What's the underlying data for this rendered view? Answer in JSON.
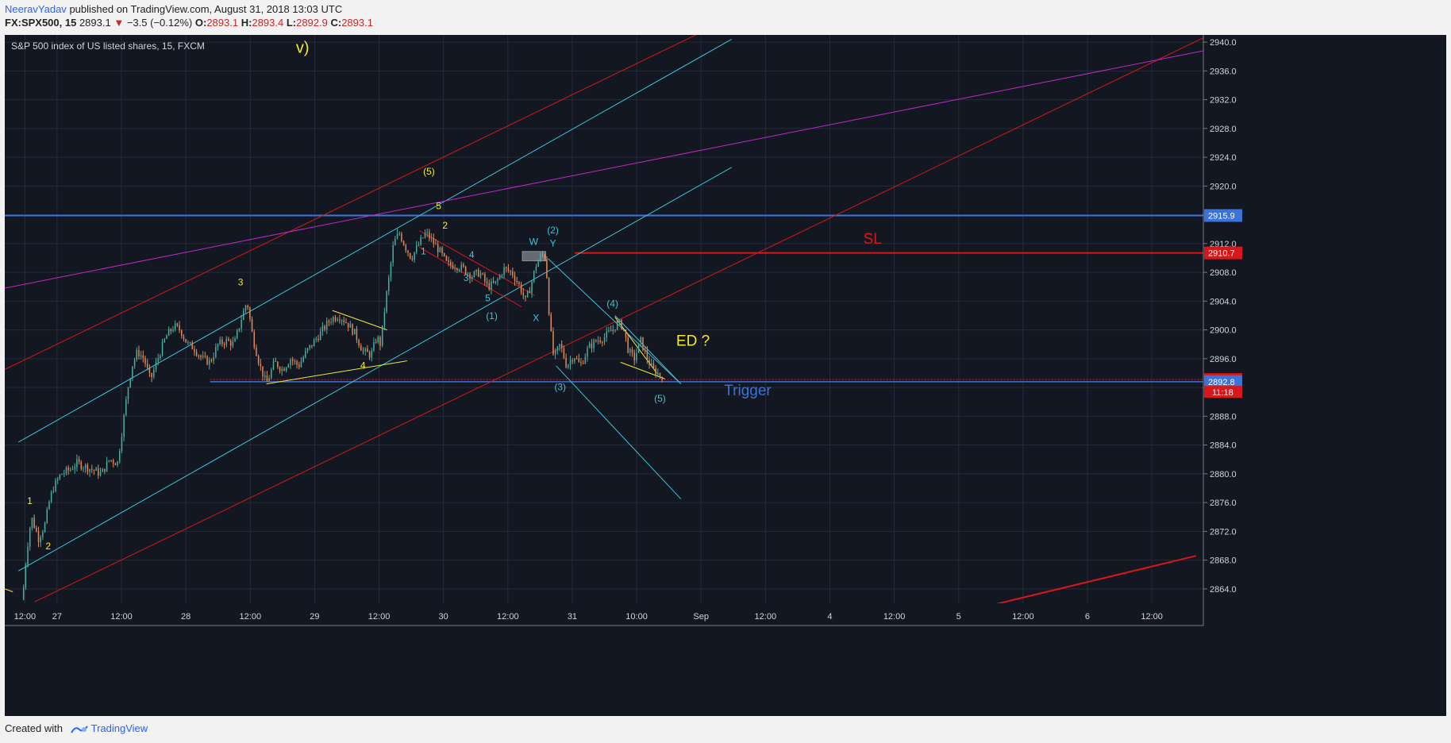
{
  "header": {
    "author": "NeeravYadav",
    "published": "published on TradingView.com, August 31, 2018 13:03 UTC",
    "symbol": "FX:SPX500, 15",
    "last": "2893.1",
    "change": "−3.5 (−0.12%)",
    "o_label": "O:",
    "o": "2893.1",
    "h_label": "H:",
    "h": "2893.4",
    "l_label": "L:",
    "l": "2892.9",
    "c_label": "C:",
    "c": "2893.1"
  },
  "footer": {
    "created_with": "Created with",
    "brand": "TradingView"
  },
  "colors": {
    "background": "#131722",
    "grid": "#262b3a",
    "up": "#4cae9f",
    "down": "#e08b58",
    "red_line": "#d8171a",
    "cyan_line": "#3bc6d6",
    "magenta_line": "#c028c8",
    "blue_level": "#3a73d9",
    "yellow": "#f2ea30"
  },
  "chart_data": {
    "type": "candlestick",
    "title": "S&P 500 index of US listed shares, 15, FXCM",
    "ylim": [
      2862,
      2941
    ],
    "xlim": [
      -6.5,
      142.4
    ],
    "y_ticks": [
      2864,
      2868,
      2872,
      2876,
      2880,
      2884,
      2888,
      2892,
      2896,
      2900,
      2904,
      2908,
      2912,
      2916,
      2920,
      2924,
      2928,
      2932,
      2936,
      2940
    ],
    "x_ticks": [
      {
        "x": -4,
        "label": "12:00"
      },
      {
        "x": 0,
        "label": "27"
      },
      {
        "x": 8,
        "label": "12:00"
      },
      {
        "x": 16,
        "label": "28"
      },
      {
        "x": 24,
        "label": "12:00"
      },
      {
        "x": 32,
        "label": "29"
      },
      {
        "x": 40,
        "label": "12:00"
      },
      {
        "x": 48,
        "label": "30"
      },
      {
        "x": 56,
        "label": "12:00"
      },
      {
        "x": 64,
        "label": "31"
      },
      {
        "x": 72,
        "label": "10:00"
      },
      {
        "x": 80,
        "label": "Sep"
      },
      {
        "x": 88,
        "label": "12:00"
      },
      {
        "x": 96,
        "label": "4"
      },
      {
        "x": 104,
        "label": "12:00"
      },
      {
        "x": 112,
        "label": "5"
      },
      {
        "x": 120,
        "label": "12:00"
      },
      {
        "x": 128,
        "label": "6"
      },
      {
        "x": 136,
        "label": "12:00"
      }
    ],
    "price_path": [
      [
        -4.3,
        2862.5
      ],
      [
        -3.8,
        2869
      ],
      [
        -3.2,
        2874
      ],
      [
        -2.3,
        2871
      ],
      [
        -1.5,
        2873
      ],
      [
        -1,
        2876
      ],
      [
        -0.5,
        2878
      ],
      [
        0.5,
        2880
      ],
      [
        1.5,
        2880.5
      ],
      [
        2.5,
        2881.5
      ],
      [
        3.5,
        2881
      ],
      [
        4.5,
        2880.5
      ],
      [
        5.5,
        2880
      ],
      [
        6.5,
        2882
      ],
      [
        7.5,
        2881.5
      ],
      [
        8.2,
        2887
      ],
      [
        8.8,
        2892
      ],
      [
        9.3,
        2895
      ],
      [
        10,
        2897
      ],
      [
        10.8,
        2896
      ],
      [
        11.6,
        2893
      ],
      [
        12.5,
        2896
      ],
      [
        13.5,
        2899
      ],
      [
        14.5,
        2900.5
      ],
      [
        15.3,
        2900
      ],
      [
        16.2,
        2898
      ],
      [
        17,
        2897.5
      ],
      [
        18,
        2896
      ],
      [
        19,
        2895.5
      ],
      [
        20,
        2898
      ],
      [
        21,
        2898.5
      ],
      [
        22,
        2898
      ],
      [
        23,
        2902
      ],
      [
        23.6,
        2904
      ],
      [
        24.3,
        2899
      ],
      [
        25.2,
        2895
      ],
      [
        26,
        2892.5
      ],
      [
        27,
        2895.5
      ],
      [
        28,
        2894.5
      ],
      [
        29,
        2896
      ],
      [
        30,
        2895
      ],
      [
        31,
        2897
      ],
      [
        32,
        2898.5
      ],
      [
        33,
        2900
      ],
      [
        34,
        2901.5
      ],
      [
        35,
        2902
      ],
      [
        36,
        2901
      ],
      [
        37,
        2899.5
      ],
      [
        38,
        2897
      ],
      [
        39,
        2896.5
      ],
      [
        39.7,
        2899
      ],
      [
        40.2,
        2898
      ],
      [
        40.8,
        2904
      ],
      [
        41.2,
        2907
      ],
      [
        41.8,
        2912
      ],
      [
        42.5,
        2913.5
      ],
      [
        43.3,
        2911.5
      ],
      [
        44,
        2910
      ],
      [
        45,
        2912
      ],
      [
        45.8,
        2913.5
      ],
      [
        46.5,
        2912.5
      ],
      [
        47.5,
        2911
      ],
      [
        48.5,
        2909
      ],
      [
        49.5,
        2909
      ],
      [
        50.5,
        2908.5
      ],
      [
        51.5,
        2907.5
      ],
      [
        52.5,
        2908
      ],
      [
        53.5,
        2906
      ],
      [
        54.5,
        2906.5
      ],
      [
        55.5,
        2908.5
      ],
      [
        56.5,
        2908
      ],
      [
        57.5,
        2906
      ],
      [
        58.2,
        2904
      ],
      [
        58.8,
        2906
      ],
      [
        59.5,
        2909
      ],
      [
        60.2,
        2910.5
      ],
      [
        60.7,
        2910
      ],
      [
        61.2,
        2901
      ],
      [
        61.7,
        2896
      ],
      [
        62.5,
        2898
      ],
      [
        63.3,
        2895
      ],
      [
        64.2,
        2896.5
      ],
      [
        65,
        2895
      ],
      [
        66,
        2897.5
      ],
      [
        67,
        2898.5
      ],
      [
        68,
        2899
      ],
      [
        69,
        2900
      ],
      [
        69.6,
        2901
      ],
      [
        70.3,
        2900.5
      ],
      [
        71,
        2897
      ],
      [
        71.7,
        2896
      ],
      [
        72.5,
        2898.5
      ],
      [
        73.3,
        2896
      ],
      [
        74,
        2894.5
      ],
      [
        74.8,
        2893.8
      ],
      [
        75.3,
        2893.1
      ]
    ],
    "current_price": 2893.1,
    "price_labels": [
      {
        "value": 2915.9,
        "label": "2915.9",
        "color": "#3a73d9"
      },
      {
        "value": 2910.7,
        "label": "2910.7",
        "color": "#d8171a"
      },
      {
        "value": 2893.1,
        "label": "2893.1",
        "color": "#d8171a"
      },
      {
        "value": 2892.8,
        "label": "2892.8",
        "color": "#3a73d9"
      }
    ],
    "countdown": "11:18",
    "drawings": [
      {
        "kind": "hline",
        "y": 2915.9,
        "color": "#3a73d9",
        "width": 2
      },
      {
        "kind": "segment",
        "x1": 64.3,
        "y1": 2910.7,
        "x2": 142.4,
        "y2": 2910.7,
        "color": "#d8171a",
        "width": 2
      },
      {
        "kind": "segment",
        "x1": 19,
        "y1": 2893.1,
        "x2": 142.4,
        "y2": 2893.1,
        "color": "#d8171a",
        "width": 1,
        "dash": "2,2"
      },
      {
        "kind": "segment",
        "x1": 19,
        "y1": 2892.8,
        "x2": 142.4,
        "y2": 2892.8,
        "color": "#3a73d9",
        "width": 1.5
      },
      {
        "kind": "segment",
        "x1": -6.5,
        "y1": 2894.5,
        "x2": 89.5,
        "y2": 2946.5,
        "color": "#d8171a",
        "width": 1
      },
      {
        "kind": "segment",
        "x1": -2.8,
        "y1": 2862.2,
        "x2": 142.4,
        "y2": 2940.6,
        "color": "#d8171a",
        "width": 1
      },
      {
        "kind": "segment",
        "x1": 111.5,
        "y1": 2860.5,
        "x2": 141.5,
        "y2": 2868.6,
        "color": "#d8171a",
        "width": 2
      },
      {
        "kind": "segment",
        "x1": -4.8,
        "y1": 2884.4,
        "x2": 83.8,
        "y2": 2940.4,
        "color": "#3bc6d6",
        "width": 1
      },
      {
        "kind": "segment",
        "x1": -4.8,
        "y1": 2866.5,
        "x2": 83.8,
        "y2": 2922.6,
        "color": "#3bc6d6",
        "width": 1
      },
      {
        "kind": "segment",
        "x1": -6.5,
        "y1": 2905.8,
        "x2": 142.4,
        "y2": 2938.8,
        "color": "#c028c8",
        "width": 1
      },
      {
        "kind": "segment",
        "x1": 61,
        "y1": 2909.9,
        "x2": 77.5,
        "y2": 2892.5,
        "color": "#3bc6d6",
        "width": 1
      },
      {
        "kind": "segment",
        "x1": 69.3,
        "y1": 2902,
        "x2": 77.5,
        "y2": 2892.5,
        "color": "#3bc6d6",
        "width": 1
      },
      {
        "kind": "segment",
        "x1": 62,
        "y1": 2895,
        "x2": 77.5,
        "y2": 2876.5,
        "color": "#3bc6d6",
        "width": 1
      },
      {
        "kind": "segment",
        "x1": 45,
        "y1": 2913.8,
        "x2": 59.3,
        "y2": 2904.8,
        "color": "#d8171a",
        "width": 1
      },
      {
        "kind": "segment",
        "x1": 45,
        "y1": 2911.5,
        "x2": 57.7,
        "y2": 2903.2,
        "color": "#d8171a",
        "width": 1
      },
      {
        "kind": "segment",
        "x1": 26,
        "y1": 2892.5,
        "x2": 43.5,
        "y2": 2895.7,
        "color": "#f2ea30",
        "width": 1
      },
      {
        "kind": "segment",
        "x1": 34.2,
        "y1": 2902.7,
        "x2": 41,
        "y2": 2900,
        "color": "#f2ea30",
        "width": 1
      },
      {
        "kind": "segment",
        "x1": 69.3,
        "y1": 2901.8,
        "x2": 74.5,
        "y2": 2894,
        "color": "#f2ea30",
        "width": 1
      },
      {
        "kind": "segment",
        "x1": 70,
        "y1": 2895.5,
        "x2": 75.5,
        "y2": 2893.2,
        "color": "#f2ea30",
        "width": 1
      },
      {
        "kind": "segment",
        "x1": -6.5,
        "y1": 2864,
        "x2": -5.5,
        "y2": 2863.6,
        "color": "#f2ea30",
        "width": 1
      },
      {
        "kind": "box",
        "x1": 57.8,
        "y1": 2909.6,
        "x2": 60.7,
        "y2": 2910.9,
        "color": "#8a8f99"
      }
    ],
    "annotations": [
      {
        "text": "v)",
        "x": 30.5,
        "y": 2938.5,
        "color": "#f2ea30",
        "size": 20
      },
      {
        "text": "(5)",
        "x": 46.2,
        "y": 2921.6,
        "color": "#f2ea30",
        "size": 12
      },
      {
        "text": "5",
        "x": 47.4,
        "y": 2916.8,
        "color": "#f2ea30",
        "size": 12
      },
      {
        "text": "2",
        "x": 48.2,
        "y": 2914.1,
        "color": "#f2ea30",
        "size": 12
      },
      {
        "text": "1",
        "x": 45.5,
        "y": 2910.5,
        "color": "#3bc6d6",
        "size": 12
      },
      {
        "text": "4",
        "x": 51.5,
        "y": 2910,
        "color": "#3bc6d6",
        "size": 12
      },
      {
        "text": "3",
        "x": 50.8,
        "y": 2906.8,
        "color": "#3bc6d6",
        "size": 12
      },
      {
        "text": "5",
        "x": 53.5,
        "y": 2904,
        "color": "#3bc6d6",
        "size": 12
      },
      {
        "text": "(1)",
        "x": 54,
        "y": 2901.5,
        "color": "#3bc6d6",
        "size": 12
      },
      {
        "text": "W",
        "x": 59.2,
        "y": 2911.8,
        "color": "#3bc6d6",
        "size": 12
      },
      {
        "text": "Y",
        "x": 61.6,
        "y": 2911.6,
        "color": "#3bc6d6",
        "size": 12
      },
      {
        "text": "(2)",
        "x": 61.6,
        "y": 2913.4,
        "color": "#3bc6d6",
        "size": 12
      },
      {
        "text": "X",
        "x": 59.5,
        "y": 2901.2,
        "color": "#3bc6d6",
        "size": 12
      },
      {
        "text": "(3)",
        "x": 62.5,
        "y": 2891.6,
        "color": "#3bc6d6",
        "size": 12
      },
      {
        "text": "(4)",
        "x": 69,
        "y": 2903.2,
        "color": "#3bc6d6",
        "size": 12
      },
      {
        "text": "(5)",
        "x": 74.9,
        "y": 2890,
        "color": "#3bc6d6",
        "size": 12
      },
      {
        "text": "3",
        "x": 22.8,
        "y": 2906.2,
        "color": "#f2ea30",
        "size": 12
      },
      {
        "text": "4",
        "x": 38,
        "y": 2894.6,
        "color": "#f2ea30",
        "size": 12
      },
      {
        "text": "1",
        "x": -3.4,
        "y": 2875.8,
        "color": "#f2ea30",
        "size": 12
      },
      {
        "text": "2",
        "x": -1.1,
        "y": 2869.5,
        "color": "#f2ea30",
        "size": 12
      },
      {
        "text": "ED ?",
        "x": 79,
        "y": 2897.8,
        "color": "#f2ea30",
        "size": 19
      },
      {
        "text": "SL",
        "x": 101.3,
        "y": 2912,
        "color": "#d8171a",
        "size": 19
      },
      {
        "text": "Trigger",
        "x": 85.8,
        "y": 2890.9,
        "color": "#3a73d9",
        "size": 19
      }
    ]
  }
}
